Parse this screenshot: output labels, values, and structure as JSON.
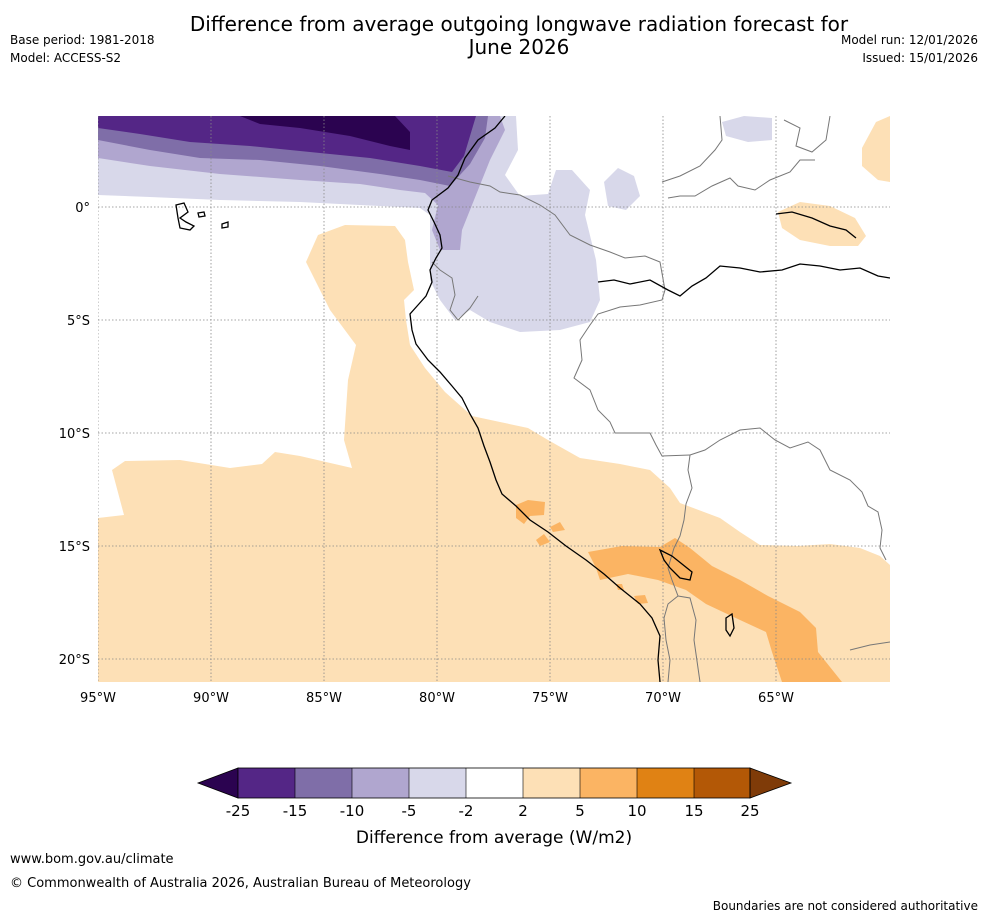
{
  "header": {
    "title_line1": "Difference from average outgoing longwave radiation forecast for",
    "title_line2": "June 2026",
    "base_period": "Base period: 1981-2018",
    "model": "Model: ACCESS-S2",
    "model_run": "Model run: 12/01/2026",
    "issued": "Issued: 15/01/2026"
  },
  "map": {
    "lon_labels": [
      "95°W",
      "90°W",
      "85°W",
      "80°W",
      "75°W",
      "70°W",
      "65°W"
    ],
    "lat_labels": [
      "0°",
      "5°S",
      "10°S",
      "15°S",
      "20°S"
    ]
  },
  "colorbar": {
    "title": "Difference from average (W/m2)",
    "tick_labels": [
      "-25",
      "-15",
      "-10",
      "-5",
      "-2",
      "2",
      "5",
      "10",
      "15",
      "25"
    ],
    "colors": {
      "below_min": "#2b0350",
      "bin1": "#542686",
      "bin2": "#7f6ea8",
      "bin3": "#b0a6cf",
      "bin4": "#d8d8ea",
      "bin5": "#ffffff",
      "bin6": "#fde0b6",
      "bin7": "#fbb463",
      "bin8": "#e08214",
      "bin9": "#b35806",
      "above_max": "#7f3b08"
    }
  },
  "footer": {
    "url": "www.bom.gov.au/climate",
    "copyright": "© Commonwealth of Australia 2026, Australian Bureau of Meteorology",
    "note": "Boundaries are not considered authoritative"
  }
}
